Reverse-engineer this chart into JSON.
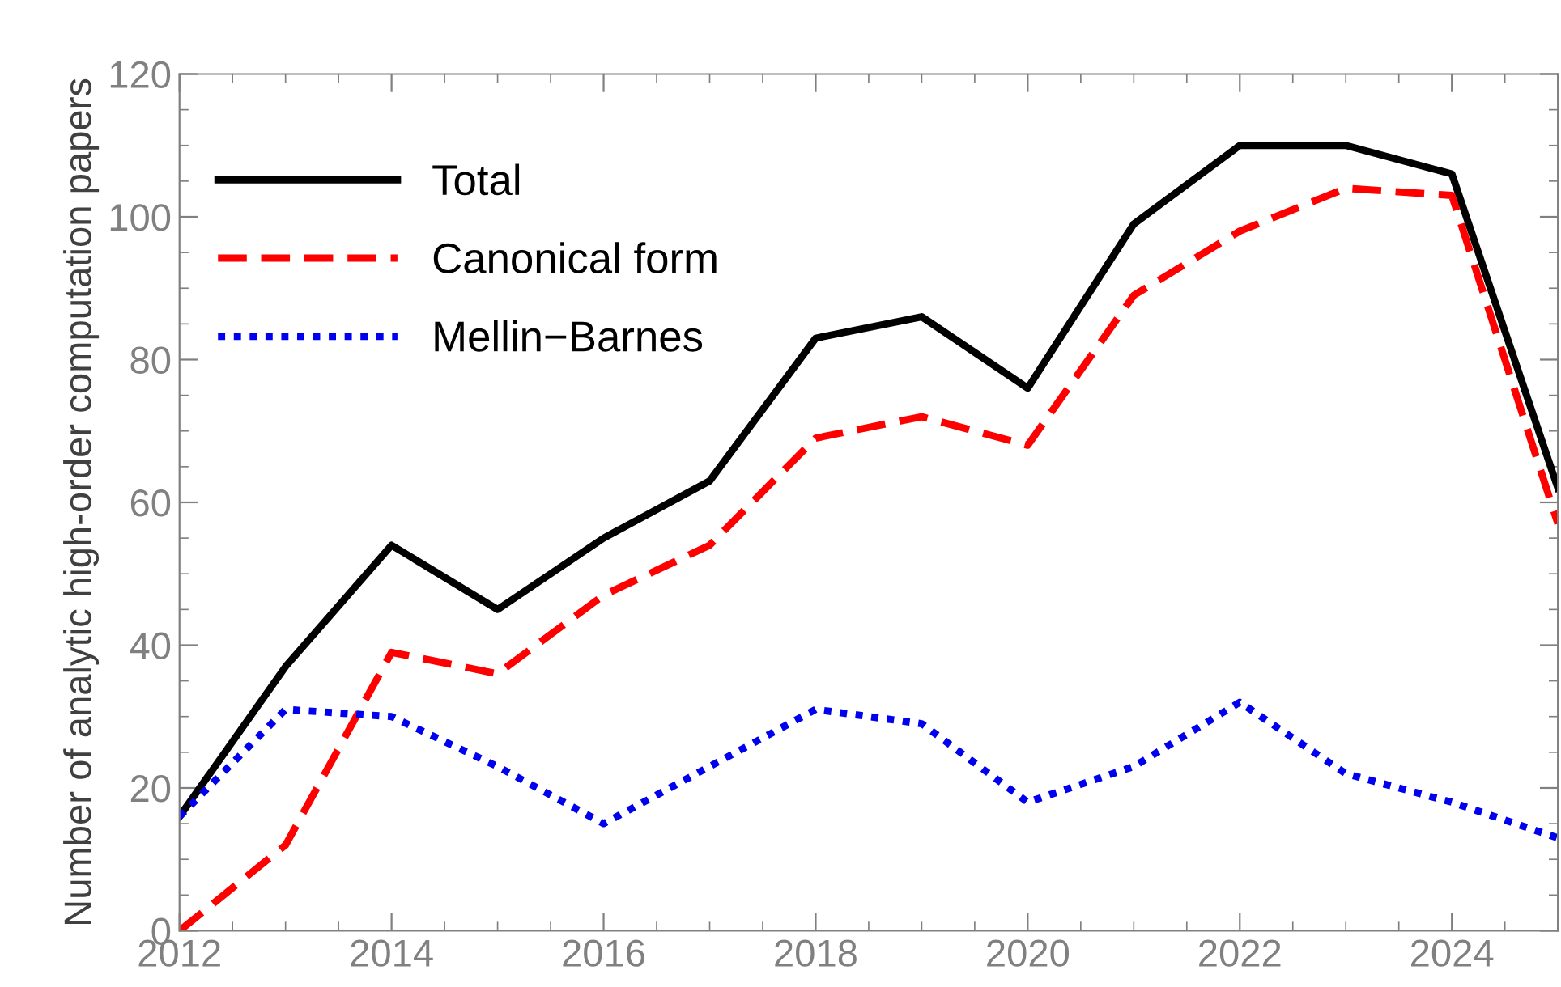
{
  "chart_data": {
    "type": "line",
    "ylabel": "Number of analytic high-order computation papers",
    "x": [
      2012,
      2013,
      2014,
      2015,
      2016,
      2017,
      2018,
      2019,
      2020,
      2021,
      2022,
      2023,
      2024,
      2025
    ],
    "series": [
      {
        "name": "Total",
        "color": "#000000",
        "line_style": "solid",
        "values": [
          16,
          37,
          54,
          45,
          55,
          63,
          83,
          86,
          76,
          99,
          110,
          110,
          106,
          62
        ]
      },
      {
        "name": "Canonical form",
        "color": "#ff0000",
        "line_style": "dashed",
        "values": [
          0,
          12,
          39,
          36,
          47,
          54,
          69,
          72,
          68,
          89,
          98,
          104,
          103,
          57
        ]
      },
      {
        "name": "Mellin−Barnes",
        "color": "#0000ee",
        "line_style": "dotted",
        "values": [
          16,
          31,
          30,
          23,
          15,
          23,
          31,
          29,
          18,
          23,
          32,
          22,
          18,
          13
        ]
      }
    ],
    "xlim": [
      2012,
      2025
    ],
    "xticks": [
      2012,
      2014,
      2016,
      2018,
      2020,
      2022,
      2024
    ],
    "ylim": [
      0,
      120
    ],
    "yticks": [
      0,
      20,
      40,
      60,
      80,
      100,
      120
    ],
    "grid": false,
    "legend": "top left",
    "marker": "none"
  }
}
